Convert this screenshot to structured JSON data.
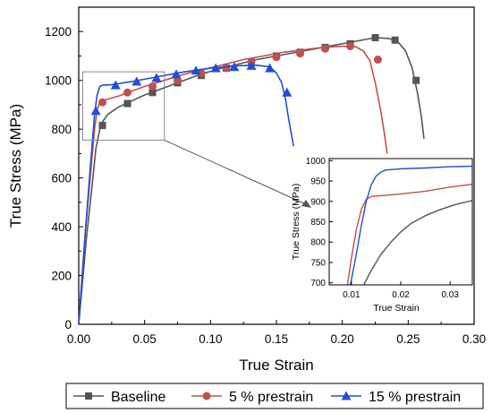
{
  "chart_data": [
    {
      "type": "line",
      "xlabel": "True Strain",
      "ylabel": "True Stress (MPa)",
      "xlim": [
        0,
        0.3
      ],
      "ylim": [
        0,
        1300
      ],
      "xticks": [
        "0.00",
        "0.05",
        "0.10",
        "0.15",
        "0.20",
        "0.25",
        "0.30"
      ],
      "yticks": [
        "0",
        "200",
        "400",
        "600",
        "800",
        "1000",
        "1200"
      ],
      "legend_position": "bottom",
      "series": [
        {
          "name": "Baseline",
          "color": "#555555",
          "marker": "square",
          "x": [
            0,
            0.006,
            0.01,
            0.013,
            0.016,
            0.018,
            0.022,
            0.03,
            0.04,
            0.05,
            0.06,
            0.075,
            0.09,
            0.105,
            0.12,
            0.135,
            0.15,
            0.165,
            0.18,
            0.195,
            0.21,
            0.225,
            0.235,
            0.242,
            0.248,
            0.253,
            0.257,
            0.26,
            0.262
          ],
          "y": [
            0,
            360,
            560,
            720,
            800,
            830,
            860,
            890,
            915,
            940,
            960,
            990,
            1020,
            1045,
            1065,
            1085,
            1100,
            1115,
            1130,
            1145,
            1160,
            1175,
            1172,
            1160,
            1120,
            1050,
            950,
            850,
            760
          ],
          "marker_x": [
            0.018,
            0.037,
            0.056,
            0.075,
            0.093,
            0.112,
            0.131,
            0.15,
            0.168,
            0.187,
            0.206,
            0.225,
            0.24,
            0.256
          ],
          "marker_y": [
            815,
            905,
            950,
            990,
            1020,
            1050,
            1075,
            1100,
            1115,
            1135,
            1150,
            1175,
            1165,
            1000
          ]
        },
        {
          "name": "5 % prestrain",
          "color": "#c0504d",
          "marker": "circle",
          "x": [
            0,
            0.005,
            0.009,
            0.012,
            0.014,
            0.016,
            0.02,
            0.03,
            0.04,
            0.05,
            0.065,
            0.08,
            0.095,
            0.11,
            0.125,
            0.14,
            0.155,
            0.17,
            0.185,
            0.2,
            0.21,
            0.216,
            0.221,
            0.225,
            0.229,
            0.232,
            0.234
          ],
          "y": [
            0,
            380,
            620,
            800,
            880,
            910,
            920,
            935,
            955,
            975,
            1000,
            1025,
            1045,
            1065,
            1085,
            1100,
            1115,
            1125,
            1135,
            1140,
            1138,
            1120,
            1080,
            990,
            880,
            780,
            700
          ],
          "marker_x": [
            0.018,
            0.037,
            0.056,
            0.075,
            0.093,
            0.112,
            0.131,
            0.15,
            0.168,
            0.187,
            0.206,
            0.227
          ],
          "marker_y": [
            910,
            950,
            975,
            1000,
            1030,
            1050,
            1075,
            1095,
            1110,
            1130,
            1140,
            1085
          ]
        },
        {
          "name": "15 % prestrain",
          "color": "#1f4ed8",
          "marker": "triangle",
          "x": [
            0,
            0.005,
            0.009,
            0.012,
            0.014,
            0.016,
            0.018,
            0.025,
            0.04,
            0.06,
            0.08,
            0.1,
            0.12,
            0.135,
            0.145,
            0.15,
            0.154,
            0.157,
            0.159,
            0.161,
            0.163
          ],
          "y": [
            0,
            380,
            660,
            860,
            940,
            975,
            980,
            982,
            995,
            1015,
            1035,
            1050,
            1060,
            1062,
            1055,
            1030,
            990,
            920,
            850,
            790,
            730
          ],
          "marker_x": [
            0.013,
            0.028,
            0.044,
            0.059,
            0.074,
            0.089,
            0.104,
            0.118,
            0.131,
            0.145,
            0.158
          ],
          "marker_y": [
            875,
            980,
            995,
            1010,
            1025,
            1040,
            1050,
            1055,
            1060,
            1050,
            950
          ]
        }
      ]
    },
    {
      "type": "line",
      "xlabel": "True Strain",
      "ylabel": "True Stress (MPa)",
      "xlim": [
        0.0055,
        0.0345
      ],
      "ylim": [
        695,
        1005
      ],
      "xticks": [
        "0.01",
        "0.02",
        "0.03"
      ],
      "yticks": [
        "700",
        "750",
        "800",
        "850",
        "900",
        "950",
        "1000"
      ],
      "series": [
        {
          "name": "Baseline",
          "color": "#555555",
          "x": [
            0.0125,
            0.014,
            0.016,
            0.018,
            0.02,
            0.022,
            0.025,
            0.028,
            0.031,
            0.0345
          ],
          "y": [
            695,
            730,
            770,
            800,
            825,
            845,
            865,
            880,
            892,
            902
          ]
        },
        {
          "name": "5 % prestrain",
          "color": "#c0504d",
          "x": [
            0.0092,
            0.01,
            0.011,
            0.012,
            0.013,
            0.014,
            0.016,
            0.02,
            0.025,
            0.03,
            0.0345
          ],
          "y": [
            695,
            760,
            830,
            880,
            905,
            912,
            914,
            918,
            925,
            935,
            942
          ]
        },
        {
          "name": "15 % prestrain",
          "color": "#1f4ed8",
          "x": [
            0.0098,
            0.011,
            0.012,
            0.013,
            0.014,
            0.015,
            0.016,
            0.017,
            0.018,
            0.02,
            0.025,
            0.03,
            0.0345
          ],
          "y": [
            695,
            770,
            840,
            900,
            940,
            962,
            972,
            977,
            978,
            980,
            982,
            985,
            986
          ]
        }
      ]
    }
  ]
}
